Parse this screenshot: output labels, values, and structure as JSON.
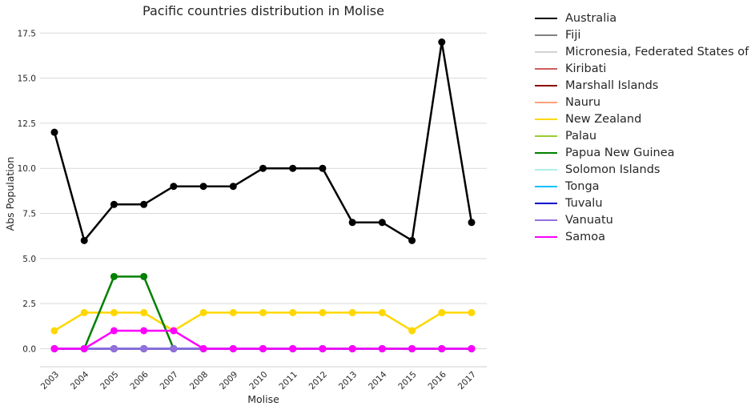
{
  "chart_data": {
    "type": "line",
    "title": "Pacific countries distribution in Molise",
    "xlabel": "Molise",
    "ylabel": "Abs Population",
    "categories": [
      "2003",
      "2004",
      "2005",
      "2006",
      "2007",
      "2008",
      "2009",
      "2010",
      "2011",
      "2012",
      "2013",
      "2014",
      "2015",
      "2016",
      "2017"
    ],
    "ylim": [
      -1.0,
      18.0
    ],
    "yticks": [
      0.0,
      2.5,
      5.0,
      7.5,
      10.0,
      12.5,
      15.0,
      17.5
    ],
    "ytick_labels": [
      "0.0",
      "2.5",
      "5.0",
      "7.5",
      "10.0",
      "12.5",
      "15.0",
      "17.5"
    ],
    "grid": "horizontal",
    "legend_position": "outside-right",
    "series": [
      {
        "name": "Australia",
        "color": "#000000",
        "values": [
          12,
          6,
          8,
          8,
          9,
          9,
          9,
          10,
          10,
          10,
          7,
          7,
          6,
          17,
          7
        ]
      },
      {
        "name": "Fiji",
        "color": "#808080",
        "values": [
          0,
          0,
          0,
          0,
          0,
          0,
          0,
          0,
          0,
          0,
          0,
          0,
          0,
          0,
          0
        ]
      },
      {
        "name": "Micronesia, Federated States of",
        "color": "#d3d3d3",
        "values": [
          0,
          0,
          0,
          0,
          0,
          0,
          0,
          0,
          0,
          0,
          0,
          0,
          0,
          0,
          0
        ]
      },
      {
        "name": "Kiribati",
        "color": "#cd5c5c",
        "values": [
          0,
          0,
          0,
          0,
          0,
          0,
          0,
          0,
          0,
          0,
          0,
          0,
          0,
          0,
          0
        ]
      },
      {
        "name": "Marshall Islands",
        "color": "#8b0000",
        "values": [
          0,
          0,
          0,
          0,
          0,
          0,
          0,
          0,
          0,
          0,
          0,
          0,
          0,
          0,
          0
        ]
      },
      {
        "name": "Nauru",
        "color": "#ffa07a",
        "values": [
          0,
          0,
          0,
          0,
          0,
          0,
          0,
          0,
          0,
          0,
          0,
          0,
          0,
          0,
          0
        ]
      },
      {
        "name": "New Zealand",
        "color": "#ffd700",
        "values": [
          1,
          2,
          2,
          2,
          1,
          2,
          2,
          2,
          2,
          2,
          2,
          2,
          1,
          2,
          2
        ]
      },
      {
        "name": "Palau",
        "color": "#9acd32",
        "values": [
          0,
          0,
          0,
          0,
          0,
          0,
          0,
          0,
          0,
          0,
          0,
          0,
          0,
          0,
          0
        ]
      },
      {
        "name": "Papua New Guinea",
        "color": "#008000",
        "values": [
          0,
          0,
          4,
          4,
          0,
          0,
          0,
          0,
          0,
          0,
          0,
          0,
          0,
          0,
          0
        ]
      },
      {
        "name": "Solomon Islands",
        "color": "#afeeee",
        "values": [
          0,
          0,
          0,
          0,
          0,
          0,
          0,
          0,
          0,
          0,
          0,
          0,
          0,
          0,
          0
        ]
      },
      {
        "name": "Tonga",
        "color": "#00bfff",
        "values": [
          0,
          0,
          0,
          0,
          0,
          0,
          0,
          0,
          0,
          0,
          0,
          0,
          0,
          0,
          0
        ]
      },
      {
        "name": "Tuvalu",
        "color": "#0000cd",
        "values": [
          0,
          0,
          0,
          0,
          0,
          0,
          0,
          0,
          0,
          0,
          0,
          0,
          0,
          0,
          0
        ]
      },
      {
        "name": "Vanuatu",
        "color": "#9370db",
        "values": [
          0,
          0,
          0,
          0,
          0,
          0,
          0,
          0,
          0,
          0,
          0,
          0,
          0,
          0,
          0
        ]
      },
      {
        "name": "Samoa",
        "color": "#ff00ff",
        "values": [
          0,
          0,
          1,
          1,
          1,
          0,
          0,
          0,
          0,
          0,
          0,
          0,
          0,
          0,
          0
        ]
      }
    ]
  }
}
